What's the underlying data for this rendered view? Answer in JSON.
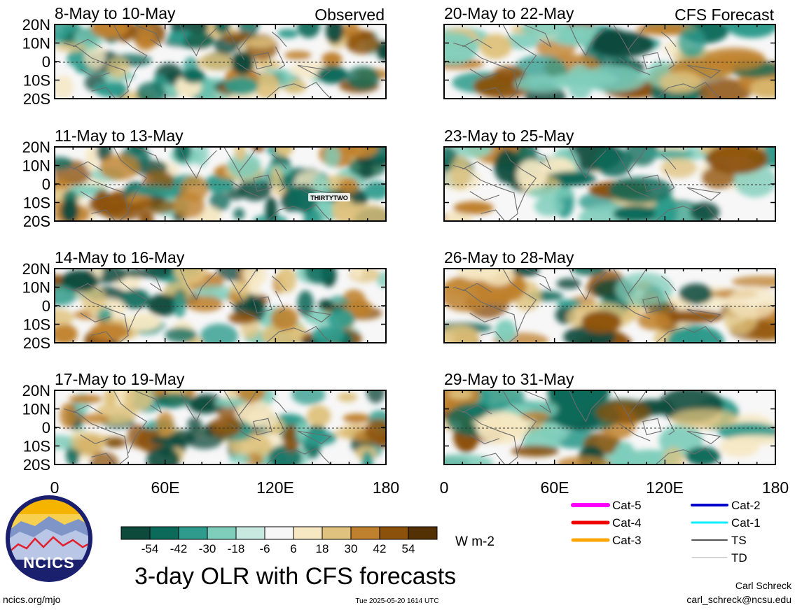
{
  "panels_observed": [
    {
      "date": "8-May to 10-May",
      "tag": "Observed"
    },
    {
      "date": "11-May to 13-May",
      "tag": ""
    },
    {
      "date": "14-May to 16-May",
      "tag": ""
    },
    {
      "date": "17-May to 19-May",
      "tag": ""
    }
  ],
  "panels_forecast": [
    {
      "date": "20-May to 22-May",
      "tag": "CFS Forecast"
    },
    {
      "date": "23-May to 25-May",
      "tag": ""
    },
    {
      "date": "26-May to 28-May",
      "tag": ""
    },
    {
      "date": "29-May to 31-May",
      "tag": ""
    }
  ],
  "lat_labels": [
    "20N",
    "10N",
    "0",
    "10S",
    "20S"
  ],
  "lon_labels": [
    "0",
    "60E",
    "120E",
    "180"
  ],
  "storm_label": "THIRTYTWO",
  "colorbar": {
    "colors": [
      "#0d4a3c",
      "#0c6a5a",
      "#2e9b8c",
      "#7fcdbb",
      "#c7e9e0",
      "#f7f7f7",
      "#f6e8c3",
      "#dfc27d",
      "#bf812d",
      "#8c510a",
      "#543005"
    ],
    "tick_labels": [
      "-54",
      "-42",
      "-30",
      "-18",
      "-6",
      "6",
      "18",
      "30",
      "42",
      "54"
    ],
    "units": "W m-2"
  },
  "title": "3-day OLR with CFS forecasts",
  "logo_text": "NCICS",
  "url_text": "ncics.org/mjo",
  "timestamp": "Tue 2025-05-20 1614 UTC",
  "author": "Carl Schreck",
  "email": "carl_schreck@ncsu.edu",
  "storm_legend": [
    {
      "label": "Cat-5",
      "color": "#ff00ff"
    },
    {
      "label": "Cat-4",
      "color": "#ee0000"
    },
    {
      "label": "Cat-3",
      "color": "#ffa500"
    },
    {
      "label": "Cat-2",
      "color": "#0000cc"
    },
    {
      "label": "Cat-1",
      "color": "#00eeff"
    },
    {
      "label": "TS",
      "color": "#555555"
    },
    {
      "label": "TD",
      "color": "#aaaaaa"
    }
  ]
}
